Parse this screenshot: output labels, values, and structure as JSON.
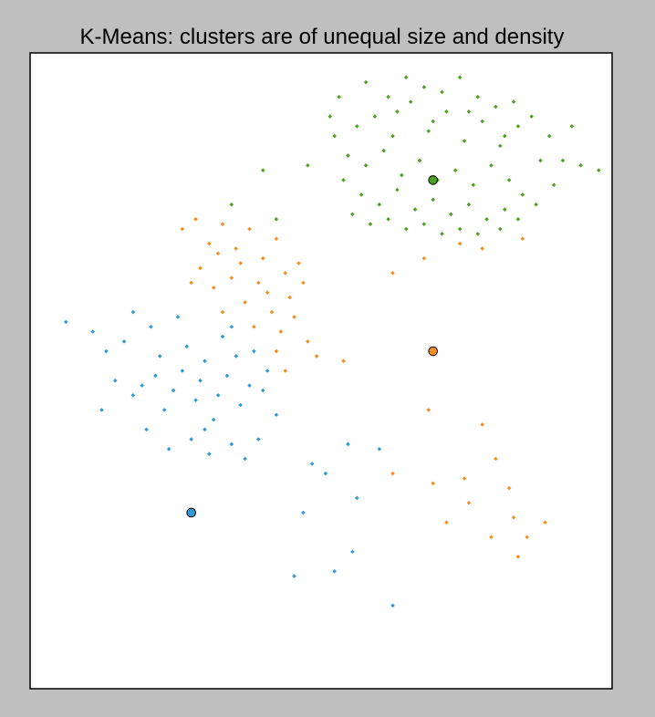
{
  "chart_data": {
    "type": "scatter",
    "title": "K-Means: clusters are of unequal size and density",
    "xlabel": "",
    "ylabel": "",
    "xlim": [
      -6.5,
      6.5
    ],
    "ylim": [
      -6.5,
      6.5
    ],
    "grid": false,
    "axes_ticks": false,
    "legend": "none",
    "series": [
      {
        "color": "#2f9ad6",
        "values": [
          [
            -5.7,
            1.0
          ],
          [
            -5.1,
            0.8
          ],
          [
            -4.8,
            0.4
          ],
          [
            -4.2,
            1.2
          ],
          [
            -4.6,
            -0.2
          ],
          [
            -4.9,
            -0.8
          ],
          [
            -4.2,
            -0.5
          ],
          [
            -3.8,
            0.9
          ],
          [
            -3.6,
            0.3
          ],
          [
            -3.9,
            -1.2
          ],
          [
            -3.3,
            -0.4
          ],
          [
            -3.0,
            0.5
          ],
          [
            -2.8,
            -0.6
          ],
          [
            -2.6,
            0.2
          ],
          [
            -2.4,
            -1.0
          ],
          [
            -2.1,
            -0.1
          ],
          [
            -2.0,
            -1.5
          ],
          [
            -1.8,
            -0.7
          ],
          [
            -1.4,
            -1.4
          ],
          [
            -1.2,
            0.0
          ],
          [
            -2.9,
            -1.4
          ],
          [
            -3.1,
            0.0
          ],
          [
            -2.2,
            0.7
          ],
          [
            -1.6,
            -0.3
          ],
          [
            -1.0,
            -0.9
          ],
          [
            -3.5,
            -0.8
          ],
          [
            -2.7,
            -0.2
          ],
          [
            -2.3,
            -0.5
          ],
          [
            -1.9,
            0.3
          ],
          [
            -4.0,
            -0.3
          ],
          [
            -4.4,
            0.6
          ],
          [
            -3.2,
            1.1
          ],
          [
            -2.5,
            -1.7
          ],
          [
            -1.7,
            -1.8
          ],
          [
            -1.3,
            -0.4
          ],
          [
            -3.4,
            -1.6
          ],
          [
            -3.7,
            -0.1
          ],
          [
            -2.0,
            0.9
          ],
          [
            -2.6,
            -1.2
          ],
          [
            -1.5,
            0.4
          ],
          [
            -0.2,
            -1.9
          ],
          [
            -0.4,
            -2.9
          ],
          [
            0.6,
            -1.5
          ],
          [
            0.1,
            -2.1
          ],
          [
            0.8,
            -2.6
          ],
          [
            1.3,
            -1.6
          ],
          [
            -0.6,
            -4.2
          ],
          [
            0.3,
            -4.1
          ],
          [
            1.6,
            -4.8
          ],
          [
            0.7,
            -3.7
          ]
        ]
      },
      {
        "color": "#f48e23",
        "values": [
          [
            -3.1,
            2.9
          ],
          [
            -2.8,
            3.1
          ],
          [
            -2.5,
            2.6
          ],
          [
            -2.2,
            3.0
          ],
          [
            -1.9,
            2.5
          ],
          [
            -1.6,
            2.9
          ],
          [
            -1.3,
            2.3
          ],
          [
            -1.0,
            2.7
          ],
          [
            -0.8,
            2.0
          ],
          [
            -0.5,
            2.2
          ],
          [
            -2.7,
            2.1
          ],
          [
            -2.4,
            1.7
          ],
          [
            -2.0,
            1.9
          ],
          [
            -1.7,
            1.4
          ],
          [
            -1.4,
            1.8
          ],
          [
            -1.1,
            1.2
          ],
          [
            -0.9,
            0.8
          ],
          [
            -0.6,
            1.1
          ],
          [
            -0.3,
            0.6
          ],
          [
            -0.1,
            0.3
          ],
          [
            -0.8,
            0.0
          ],
          [
            -1.0,
            0.4
          ],
          [
            -1.5,
            0.9
          ],
          [
            -2.2,
            1.2
          ],
          [
            -2.9,
            1.8
          ],
          [
            -2.3,
            2.4
          ],
          [
            -1.8,
            2.2
          ],
          [
            -1.2,
            1.6
          ],
          [
            -0.7,
            1.5
          ],
          [
            -0.4,
            1.8
          ],
          [
            0.5,
            0.2
          ],
          [
            1.6,
            2.0
          ],
          [
            2.3,
            2.3
          ],
          [
            3.1,
            2.6
          ],
          [
            3.6,
            2.5
          ],
          [
            4.5,
            2.7
          ],
          [
            2.4,
            -0.8
          ],
          [
            3.6,
            -1.1
          ],
          [
            1.6,
            -2.1
          ],
          [
            2.5,
            -2.3
          ],
          [
            3.2,
            -2.2
          ],
          [
            3.9,
            -1.8
          ],
          [
            4.2,
            -2.4
          ],
          [
            4.3,
            -3.0
          ],
          [
            4.6,
            -3.4
          ],
          [
            5.0,
            -3.1
          ],
          [
            3.3,
            -2.7
          ],
          [
            2.8,
            -3.1
          ],
          [
            3.8,
            -3.4
          ],
          [
            4.4,
            -3.8
          ]
        ]
      },
      {
        "color": "#4aa320",
        "values": [
          [
            0.8,
            5.0
          ],
          [
            1.2,
            5.2
          ],
          [
            1.6,
            4.8
          ],
          [
            2.0,
            5.5
          ],
          [
            2.4,
            4.9
          ],
          [
            2.8,
            5.3
          ],
          [
            3.2,
            4.7
          ],
          [
            3.6,
            5.1
          ],
          [
            4.0,
            4.6
          ],
          [
            4.4,
            5.0
          ],
          [
            0.6,
            4.4
          ],
          [
            1.0,
            4.2
          ],
          [
            1.4,
            4.5
          ],
          [
            1.8,
            4.0
          ],
          [
            2.2,
            4.3
          ],
          [
            2.6,
            3.9
          ],
          [
            3.0,
            4.1
          ],
          [
            3.4,
            3.8
          ],
          [
            3.8,
            4.2
          ],
          [
            4.2,
            3.9
          ],
          [
            0.9,
            3.6
          ],
          [
            1.3,
            3.4
          ],
          [
            1.7,
            3.7
          ],
          [
            2.1,
            3.3
          ],
          [
            2.5,
            3.5
          ],
          [
            2.9,
            3.2
          ],
          [
            3.3,
            3.4
          ],
          [
            3.7,
            3.1
          ],
          [
            4.1,
            3.3
          ],
          [
            4.5,
            3.6
          ],
          [
            1.5,
            5.6
          ],
          [
            1.9,
            6.0
          ],
          [
            2.3,
            5.8
          ],
          [
            2.7,
            5.7
          ],
          [
            3.1,
            6.0
          ],
          [
            3.5,
            5.6
          ],
          [
            3.9,
            5.4
          ],
          [
            4.3,
            5.5
          ],
          [
            4.7,
            5.2
          ],
          [
            5.1,
            4.8
          ],
          [
            0.3,
            4.8
          ],
          [
            0.5,
            3.9
          ],
          [
            0.7,
            3.2
          ],
          [
            1.1,
            3.0
          ],
          [
            1.5,
            3.1
          ],
          [
            1.9,
            2.9
          ],
          [
            2.3,
            3.0
          ],
          [
            2.7,
            2.8
          ],
          [
            3.1,
            2.9
          ],
          [
            3.5,
            2.8
          ],
          [
            4.0,
            2.9
          ],
          [
            4.4,
            3.1
          ],
          [
            4.8,
            3.4
          ],
          [
            5.2,
            3.8
          ],
          [
            5.4,
            4.3
          ],
          [
            5.6,
            5.0
          ],
          [
            5.8,
            4.2
          ],
          [
            6.2,
            4.1
          ],
          [
            -1.3,
            4.1
          ],
          [
            -2.0,
            3.4
          ],
          [
            -1.0,
            3.1
          ],
          [
            -0.3,
            4.2
          ],
          [
            0.2,
            5.2
          ],
          [
            0.4,
            5.6
          ],
          [
            1.0,
            5.9
          ],
          [
            1.7,
            5.3
          ],
          [
            2.5,
            5.1
          ],
          [
            3.3,
            5.3
          ],
          [
            4.1,
            4.8
          ],
          [
            4.9,
            4.3
          ]
        ]
      }
    ],
    "centroids": [
      {
        "x": -2.9,
        "y": -2.9,
        "color": "#2f9ad6"
      },
      {
        "x": 2.5,
        "y": 0.4,
        "color": "#f48e23"
      },
      {
        "x": 2.5,
        "y": 3.9,
        "color": "#4aa320"
      }
    ]
  }
}
